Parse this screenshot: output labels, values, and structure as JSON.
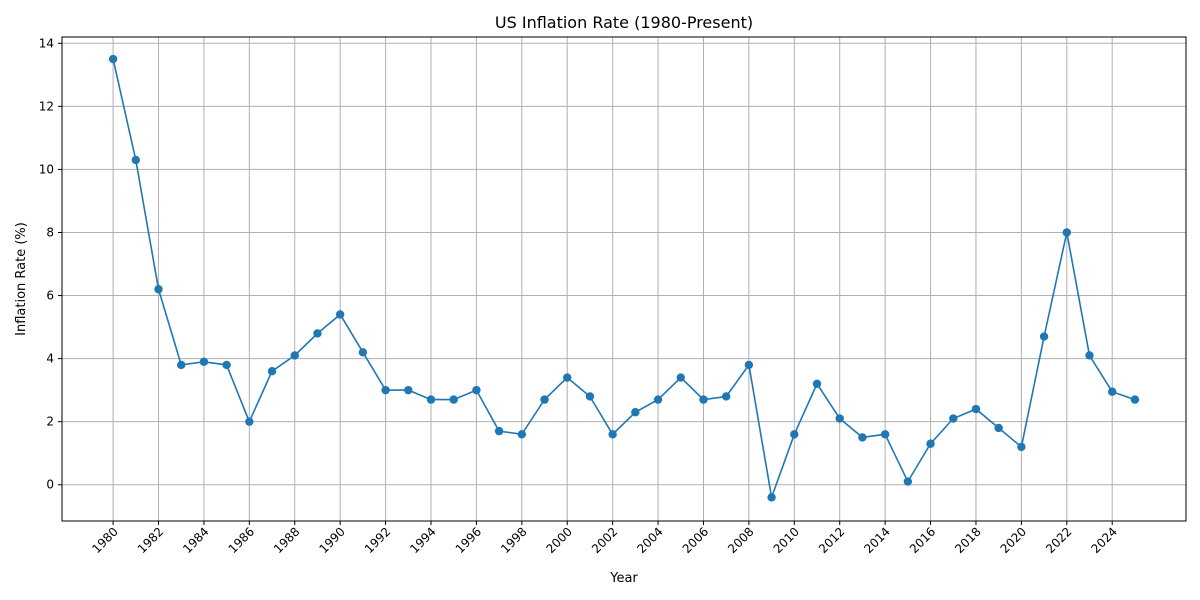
{
  "chart_data": {
    "type": "line",
    "title": "US Inflation Rate (1980-Present)",
    "xlabel": "Year",
    "ylabel": "Inflation Rate (%)",
    "xlim": [
      1977.75,
      2027.25
    ],
    "ylim": [
      -1.15,
      14.2
    ],
    "x_ticks": [
      1980,
      1982,
      1984,
      1986,
      1988,
      1990,
      1992,
      1994,
      1996,
      1998,
      2000,
      2002,
      2004,
      2006,
      2008,
      2010,
      2012,
      2014,
      2016,
      2018,
      2020,
      2022,
      2024
    ],
    "y_ticks": [
      0,
      2,
      4,
      6,
      8,
      10,
      12,
      14
    ],
    "grid": true,
    "color": "#1f77b4",
    "series": [
      {
        "x": [
          1980,
          1981,
          1982,
          1983,
          1984,
          1985,
          1986,
          1987,
          1988,
          1989,
          1990,
          1991,
          1992,
          1993,
          1994,
          1995,
          1996,
          1997,
          1998,
          1999,
          2000,
          2001,
          2002,
          2003,
          2004,
          2005,
          2006,
          2007,
          2008,
          2009,
          2010,
          2011,
          2012,
          2013,
          2014,
          2015,
          2016,
          2017,
          2018,
          2019,
          2020,
          2021,
          2022,
          2023,
          2024,
          2025
        ],
        "values": [
          13.5,
          10.3,
          6.2,
          3.8,
          3.9,
          3.8,
          2.0,
          3.6,
          4.1,
          4.8,
          5.4,
          4.2,
          3.0,
          3.0,
          2.7,
          2.7,
          3.0,
          1.7,
          1.6,
          2.7,
          3.4,
          2.8,
          1.6,
          2.3,
          2.7,
          3.4,
          2.7,
          2.8,
          3.8,
          -0.4,
          1.6,
          3.2,
          2.1,
          1.5,
          1.6,
          0.1,
          1.3,
          2.1,
          2.4,
          1.8,
          1.2,
          4.7,
          8.0,
          4.1,
          2.95,
          2.7
        ]
      }
    ]
  }
}
